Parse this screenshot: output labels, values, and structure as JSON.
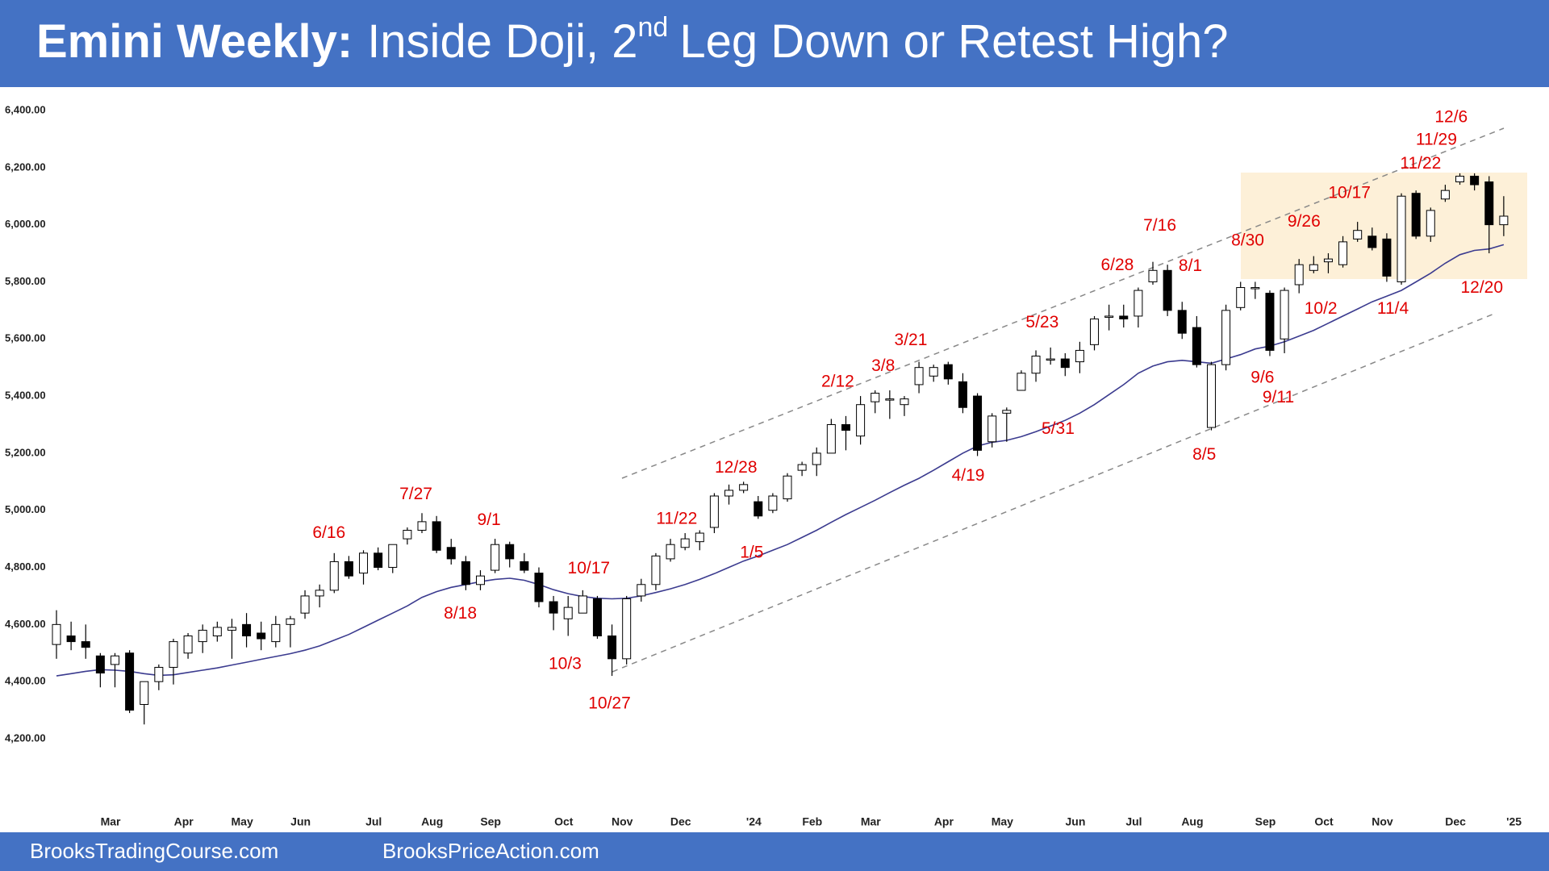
{
  "header": {
    "title_bold": "Emini Weekly:",
    "title_main": "Inside Doji, 2",
    "title_sup": "nd",
    "title_end": "Leg Down or Retest High?"
  },
  "footer": {
    "left": "BrooksTradingCourse.com",
    "right": "BrooksPriceAction.com"
  },
  "chart_data": {
    "type": "candlestick",
    "categories": [
      null,
      null,
      null,
      null,
      "Mar",
      null,
      null,
      null,
      null,
      "Apr",
      null,
      null,
      null,
      "May",
      null,
      null,
      null,
      "Jun",
      null,
      null,
      null,
      null,
      "Jul",
      null,
      null,
      null,
      "Aug",
      null,
      null,
      null,
      "Sep",
      null,
      null,
      null,
      null,
      "Oct",
      null,
      null,
      null,
      "Nov",
      null,
      null,
      null,
      "Dec",
      null,
      null,
      null,
      null,
      "'24",
      null,
      null,
      null,
      "Feb",
      null,
      null,
      null,
      "Mar",
      null,
      null,
      null,
      null,
      "Apr",
      null,
      null,
      null,
      "May",
      null,
      null,
      null,
      null,
      "Jun",
      null,
      null,
      null,
      "Jul",
      null,
      null,
      null,
      "Aug",
      null,
      null,
      null,
      null,
      "Sep",
      null,
      null,
      null,
      "Oct",
      null,
      null,
      null,
      "Nov",
      null,
      null,
      null,
      null,
      "Dec",
      null,
      null,
      null,
      "'25"
    ],
    "open": [
      4530,
      4560,
      4540,
      4490,
      4460,
      4500,
      4320,
      4400,
      4450,
      4500,
      4540,
      4560,
      4580,
      4600,
      4570,
      4540,
      4600,
      4640,
      4700,
      4720,
      4820,
      4780,
      4850,
      4800,
      4900,
      4930,
      4960,
      4870,
      4820,
      4740,
      4790,
      4880,
      4820,
      4780,
      4680,
      4620,
      4640,
      4690,
      4560,
      4480,
      4700,
      4740,
      4830,
      4870,
      4890,
      4940,
      5050,
      5070,
      5030,
      5000,
      5040,
      5140,
      5160,
      5200,
      5300,
      5260,
      5380,
      5390,
      5370,
      5440,
      5470,
      5510,
      5450,
      5400,
      5240,
      5340,
      5420,
      5480,
      5530,
      5530,
      5520,
      5580,
      5680,
      5680,
      5680,
      5800,
      5840,
      5700,
      5640,
      5290,
      5510,
      5710,
      5780,
      5760,
      5600,
      5790,
      5840,
      5870,
      5860,
      5950,
      5960,
      5950,
      5800,
      6110,
      5960,
      6090,
      6150,
      6170,
      6150,
      6000,
      null
    ],
    "high": [
      4650,
      4610,
      4600,
      4500,
      4500,
      4510,
      4400,
      4460,
      4550,
      4570,
      4600,
      4610,
      4620,
      4640,
      4610,
      4630,
      4630,
      4720,
      4740,
      4850,
      4840,
      4860,
      4870,
      4880,
      4940,
      4990,
      4980,
      4900,
      4840,
      4790,
      4900,
      4890,
      4850,
      4800,
      4700,
      4700,
      4720,
      4700,
      4600,
      4700,
      4760,
      4850,
      4900,
      4920,
      4930,
      5060,
      5090,
      5100,
      5050,
      5060,
      5130,
      5170,
      5220,
      5320,
      5330,
      5400,
      5420,
      5420,
      5400,
      5520,
      5510,
      5520,
      5480,
      5410,
      5340,
      5360,
      5490,
      5560,
      5570,
      5550,
      5590,
      5680,
      5720,
      5720,
      5780,
      5870,
      5860,
      5730,
      5680,
      5520,
      5720,
      5800,
      5800,
      5770,
      5780,
      5880,
      5890,
      5900,
      5960,
      6010,
      5990,
      5970,
      6110,
      6120,
      6060,
      6140,
      6180,
      6180,
      6170,
      6100,
      null
    ],
    "low": [
      4480,
      4510,
      4480,
      4380,
      4380,
      4290,
      4250,
      4370,
      4390,
      4480,
      4500,
      4540,
      4480,
      4520,
      4510,
      4520,
      4520,
      4620,
      4660,
      4710,
      4760,
      4740,
      4790,
      4780,
      4880,
      4920,
      4850,
      4810,
      4720,
      4720,
      4780,
      4800,
      4780,
      4660,
      4580,
      4560,
      4640,
      4550,
      4420,
      4460,
      4680,
      4720,
      4820,
      4860,
      4860,
      4920,
      5020,
      5060,
      4970,
      4990,
      5030,
      5120,
      5120,
      5200,
      5210,
      5230,
      5340,
      5320,
      5330,
      5410,
      5450,
      5440,
      5340,
      5190,
      5220,
      5240,
      5420,
      5450,
      5510,
      5470,
      5480,
      5560,
      5630,
      5640,
      5640,
      5790,
      5680,
      5600,
      5500,
      5280,
      5490,
      5700,
      5740,
      5540,
      5550,
      5760,
      5830,
      5830,
      5850,
      5940,
      5910,
      5800,
      5790,
      5950,
      5940,
      6080,
      6140,
      6120,
      5900,
      5960,
      null
    ],
    "close": [
      4600,
      4540,
      4520,
      4430,
      4490,
      4300,
      4400,
      4450,
      4540,
      4560,
      4580,
      4590,
      4590,
      4560,
      4550,
      4600,
      4620,
      4700,
      4720,
      4820,
      4770,
      4850,
      4800,
      4880,
      4930,
      4960,
      4860,
      4830,
      4740,
      4770,
      4880,
      4830,
      4790,
      4680,
      4640,
      4660,
      4700,
      4560,
      4480,
      4690,
      4740,
      4840,
      4880,
      4900,
      4920,
      5050,
      5070,
      5090,
      4980,
      5050,
      5120,
      5160,
      5200,
      5300,
      5280,
      5370,
      5410,
      5390,
      5390,
      5500,
      5500,
      5460,
      5360,
      5210,
      5330,
      5350,
      5480,
      5540,
      5530,
      5500,
      5560,
      5670,
      5680,
      5670,
      5770,
      5840,
      5700,
      5620,
      5510,
      5510,
      5700,
      5780,
      5780,
      5560,
      5770,
      5860,
      5860,
      5880,
      5940,
      5980,
      5920,
      5820,
      6100,
      5960,
      6050,
      6120,
      6170,
      6140,
      6000,
      6030,
      null
    ],
    "ma": {
      "color": "#3b3b8f",
      "values": [
        4420,
        4428,
        4436,
        4442,
        4440,
        4436,
        4428,
        4422,
        4424,
        4432,
        4440,
        4448,
        4458,
        4468,
        4478,
        4488,
        4498,
        4510,
        4525,
        4545,
        4565,
        4590,
        4615,
        4640,
        4665,
        4695,
        4715,
        4730,
        4740,
        4750,
        4758,
        4762,
        4755,
        4740,
        4722,
        4708,
        4698,
        4692,
        4690,
        4692,
        4700,
        4712,
        4725,
        4740,
        4758,
        4778,
        4800,
        4822,
        4840,
        4860,
        4880,
        4905,
        4930,
        4958,
        4985,
        5010,
        5035,
        5062,
        5088,
        5112,
        5140,
        5170,
        5200,
        5225,
        5238,
        5245,
        5258,
        5275,
        5295,
        5315,
        5340,
        5370,
        5405,
        5440,
        5480,
        5505,
        5520,
        5525,
        5520,
        5515,
        5530,
        5545,
        5565,
        5575,
        5590,
        5610,
        5630,
        5655,
        5680,
        5705,
        5730,
        5750,
        5770,
        5800,
        5830,
        5865,
        5895,
        5910,
        5915,
        5930,
        null
      ]
    },
    "ylim": [
      4000,
      6450
    ],
    "yticks": [
      {
        "value": 4200,
        "label": "4,200.00"
      },
      {
        "value": 4400,
        "label": "4,400.00"
      },
      {
        "value": 4600,
        "label": "4,600.00"
      },
      {
        "value": 4800,
        "label": "4,800.00"
      },
      {
        "value": 5000,
        "label": "5,000.00"
      },
      {
        "value": 5200,
        "label": "5,200.00"
      },
      {
        "value": 5400,
        "label": "5,400.00"
      },
      {
        "value": 5600,
        "label": "5,600.00"
      },
      {
        "value": 5800,
        "label": "5,800.00"
      },
      {
        "value": 6000,
        "label": "6,000.00"
      },
      {
        "value": 6200,
        "label": "6,200.00"
      },
      {
        "value": 6400,
        "label": "6,400.00"
      }
    ],
    "annotations": [
      "6/16",
      "7/27",
      "9/1",
      "8/18",
      "10/17",
      "10/3",
      "10/27",
      "11/22",
      "12/28",
      "1/5",
      "2/12",
      "3/8",
      "3/21",
      "4/19",
      "5/23",
      "5/31",
      "6/28",
      "7/16",
      "8/1",
      "8/5",
      "8/30",
      "9/6",
      "9/11",
      "9/26",
      "10/2",
      "10/17",
      "11/4",
      "11/22",
      "11/29",
      "12/6",
      "12/20"
    ],
    "annotation_color": "#e00000"
  }
}
